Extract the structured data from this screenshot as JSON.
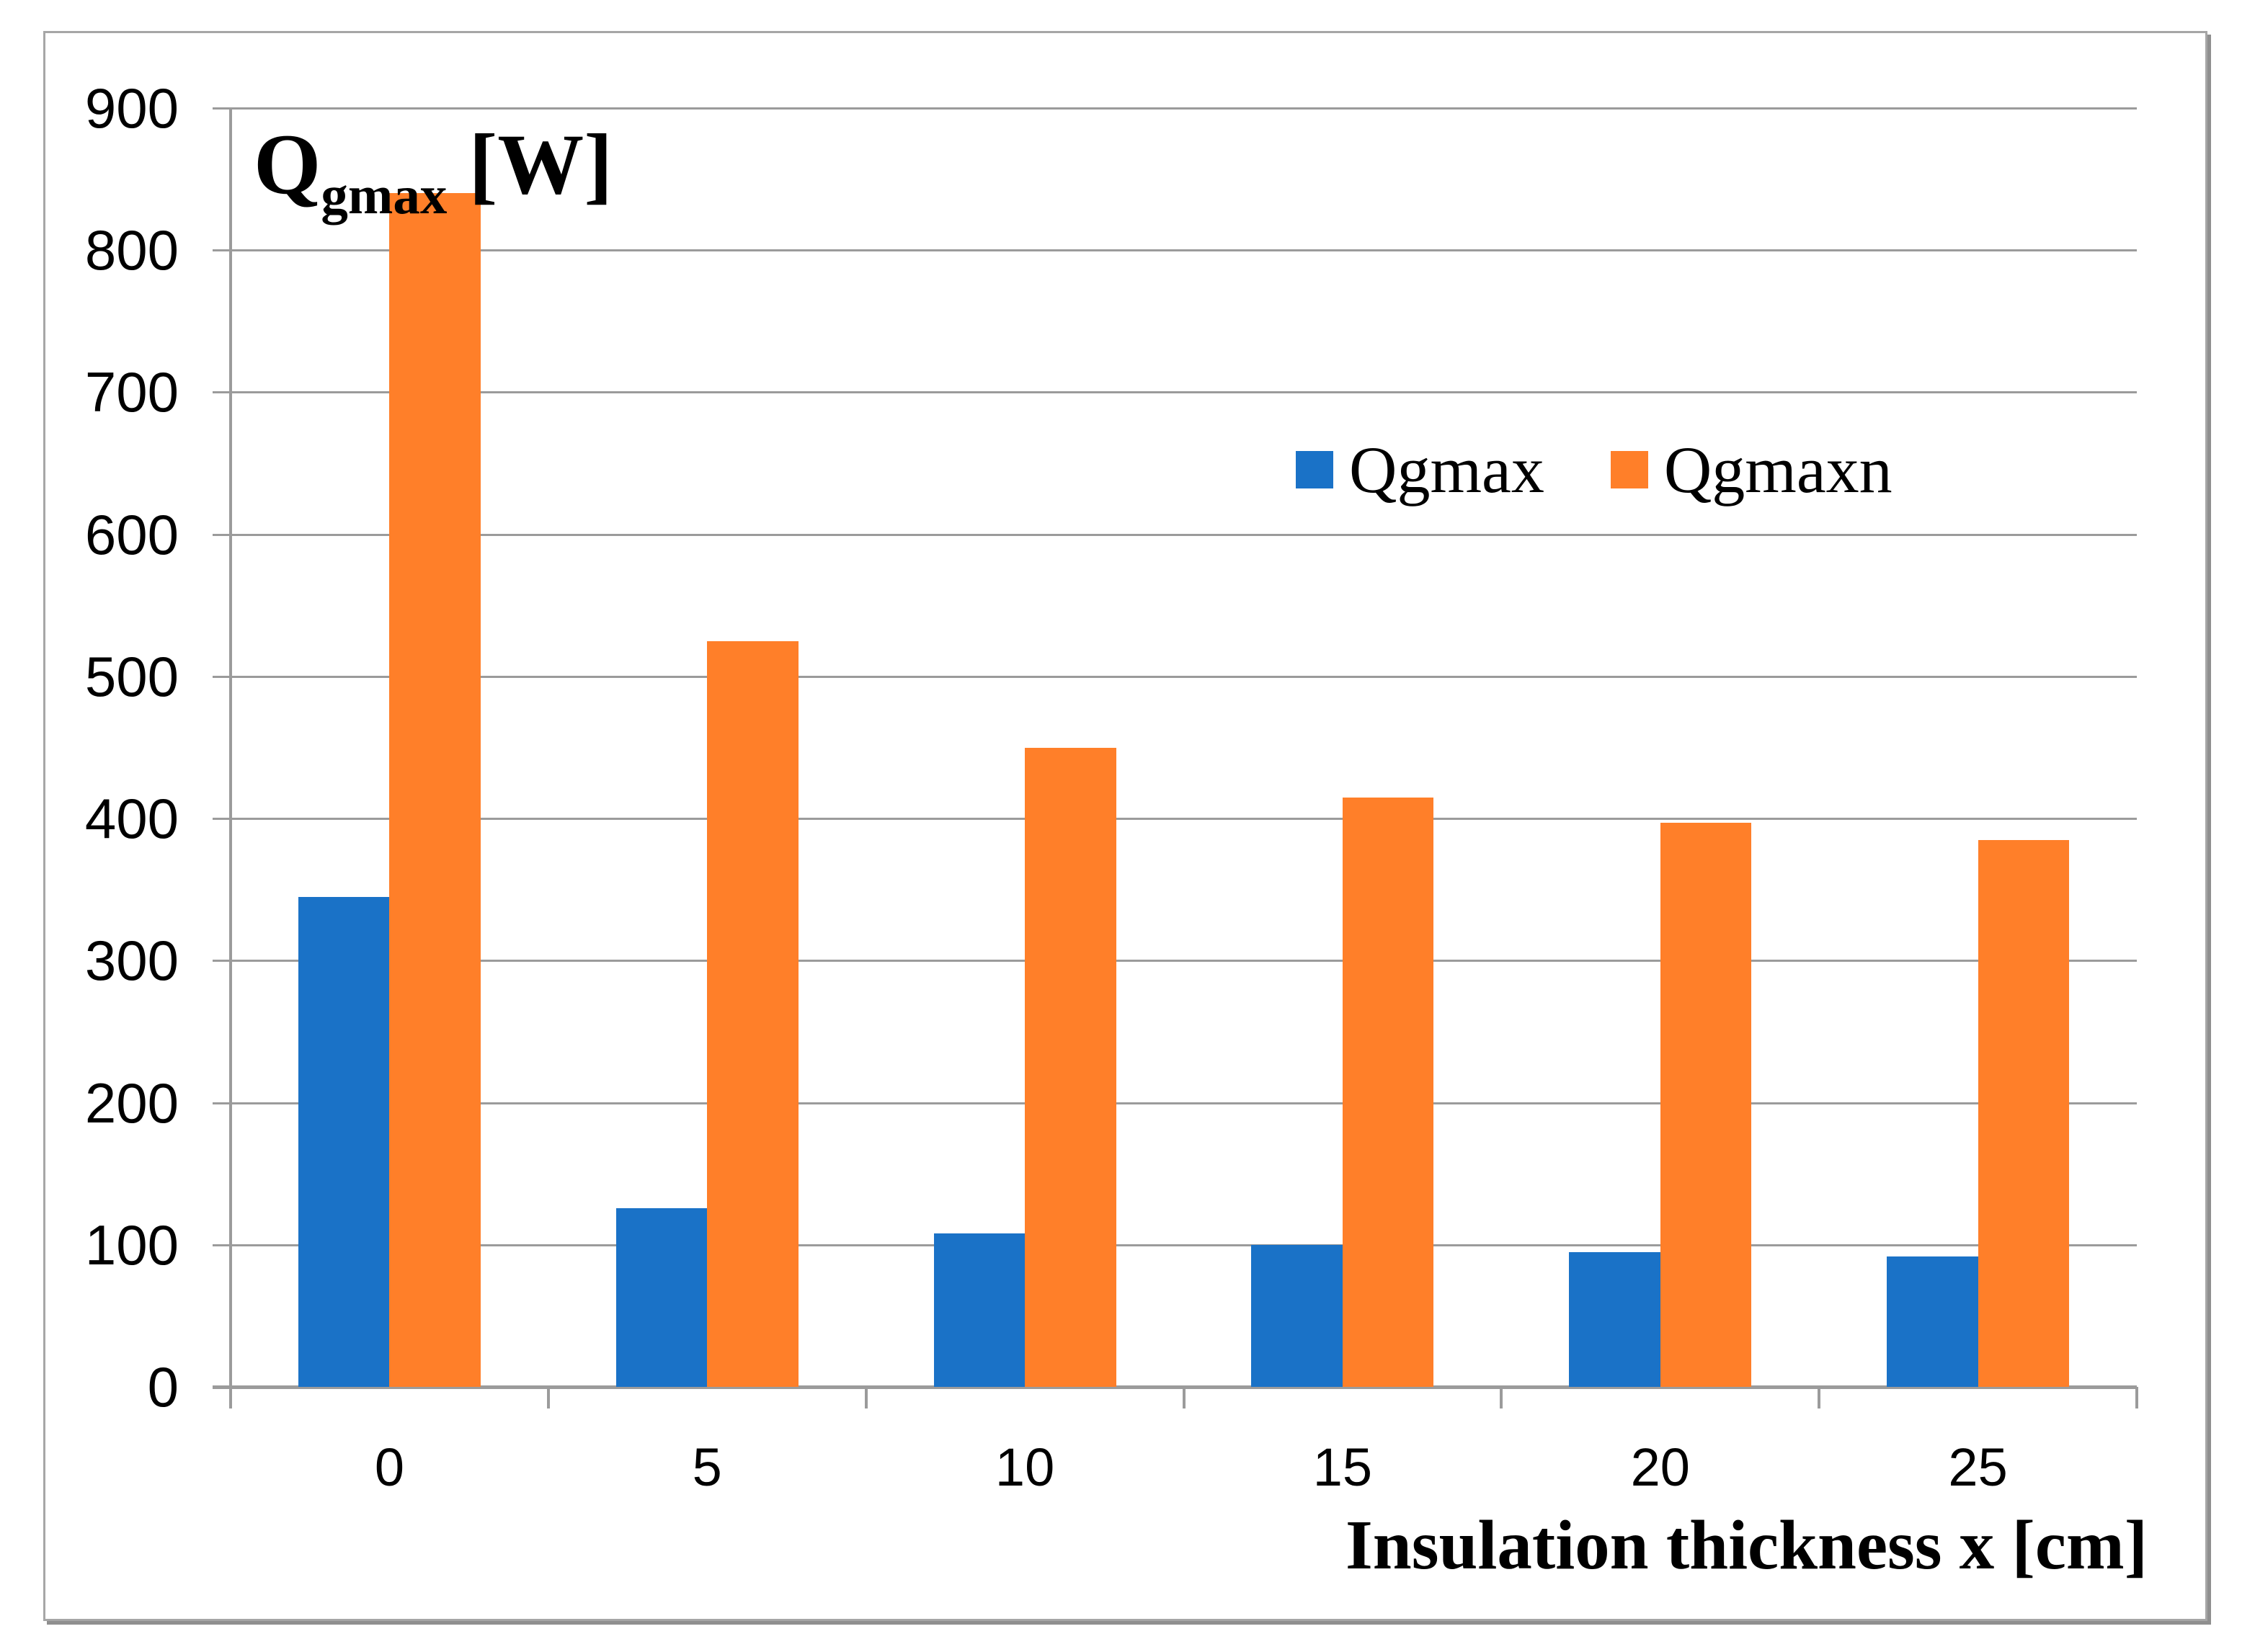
{
  "chart_data": {
    "type": "bar",
    "title_parts": [
      "Q",
      "gmax",
      " [W]"
    ],
    "title_text": "Qgmax [W]",
    "categories": [
      "0",
      "5",
      "10",
      "15",
      "20",
      "25"
    ],
    "series": [
      {
        "name": "Qgmax",
        "color": "#1a72c7",
        "values": [
          345,
          126,
          108,
          100,
          95,
          92
        ]
      },
      {
        "name": "Qgmaxn",
        "color": "#ff7f29",
        "values": [
          840,
          525,
          450,
          415,
          397,
          385
        ]
      }
    ],
    "xlabel": "Insulation thickness x [cm]",
    "ylim": [
      0,
      900
    ],
    "ytick_step": 100,
    "yticks": [
      0,
      100,
      200,
      300,
      400,
      500,
      600,
      700,
      800,
      900
    ],
    "grid": true,
    "legend": {
      "entries": [
        "Qgmax",
        "Qgmaxn"
      ],
      "position": "inside-upper-right"
    },
    "axis_color": "#9b9b9b",
    "border_color": "#a6a6a6"
  }
}
